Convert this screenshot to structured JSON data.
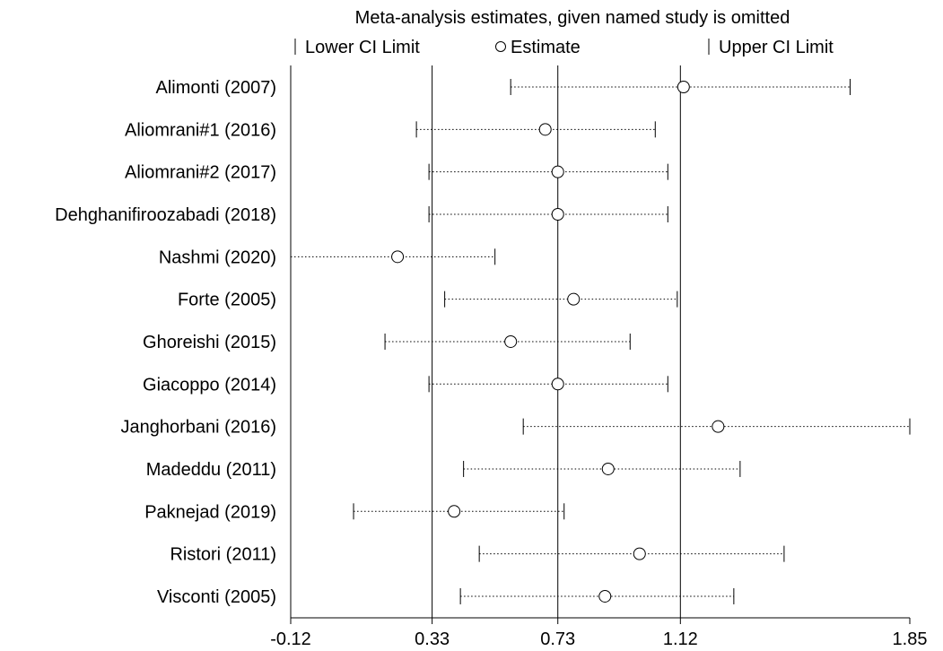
{
  "chart_data": {
    "type": "forest",
    "title": "Meta-analysis estimates, given named study is omitted",
    "legend": {
      "lower": "Lower CI Limit",
      "estimate": "Estimate",
      "upper": "Upper CI Limit",
      "placement": "top"
    },
    "xlim": [
      -0.12,
      1.85
    ],
    "x_ticks": [
      -0.12,
      0.33,
      0.73,
      1.12,
      1.85
    ],
    "x_tick_labels": [
      "-0.12",
      "0.33",
      "0.73",
      "1.12",
      "1.85"
    ],
    "reference_lines": [
      0.33,
      0.73,
      1.12
    ],
    "studies": [
      {
        "label": "Alimonti (2007)",
        "lower": 0.58,
        "estimate": 1.13,
        "upper": 1.66
      },
      {
        "label": "Aliomrani#1 (2016)",
        "lower": 0.28,
        "estimate": 0.69,
        "upper": 1.04
      },
      {
        "label": "Aliomrani#2 (2017)",
        "lower": 0.32,
        "estimate": 0.73,
        "upper": 1.08
      },
      {
        "label": "Dehghanifiroozabadi (2018)",
        "lower": 0.32,
        "estimate": 0.73,
        "upper": 1.08
      },
      {
        "label": "Nashmi (2020)",
        "lower": -0.12,
        "estimate": 0.22,
        "upper": 0.53
      },
      {
        "label": "Forte (2005)",
        "lower": 0.37,
        "estimate": 0.78,
        "upper": 1.11
      },
      {
        "label": "Ghoreishi (2015)",
        "lower": 0.18,
        "estimate": 0.58,
        "upper": 0.96
      },
      {
        "label": "Giacoppo (2014)",
        "lower": 0.32,
        "estimate": 0.73,
        "upper": 1.08
      },
      {
        "label": "Janghorbani (2016)",
        "lower": 0.62,
        "estimate": 1.24,
        "upper": 1.85
      },
      {
        "label": "Madeddu (2011)",
        "lower": 0.43,
        "estimate": 0.89,
        "upper": 1.31
      },
      {
        "label": "Paknejad (2019)",
        "lower": 0.08,
        "estimate": 0.4,
        "upper": 0.75
      },
      {
        "label": "Ristori (2011)",
        "lower": 0.48,
        "estimate": 0.99,
        "upper": 1.45
      },
      {
        "label": "Visconti (2005)",
        "lower": 0.42,
        "estimate": 0.88,
        "upper": 1.29
      }
    ]
  }
}
